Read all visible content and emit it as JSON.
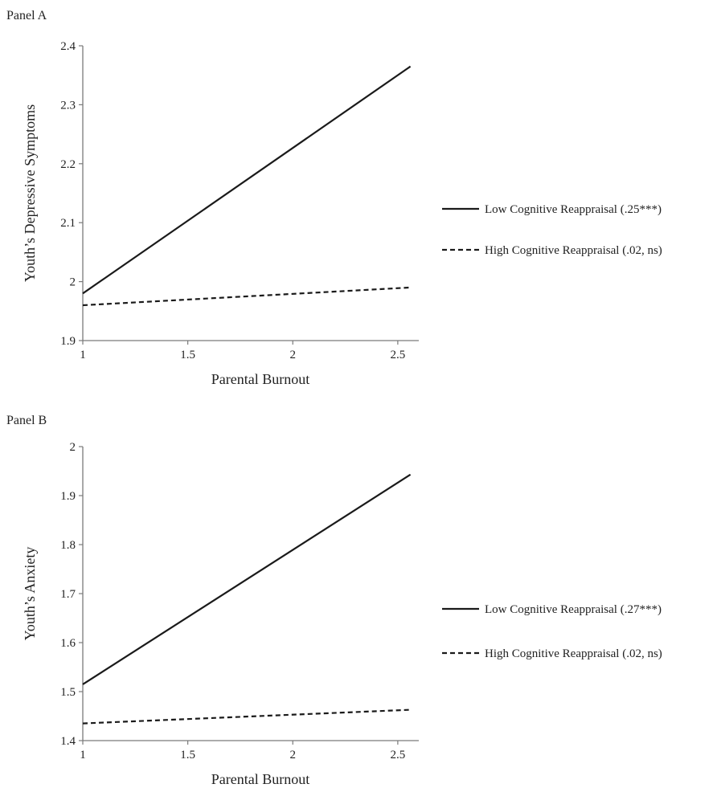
{
  "figure": {
    "panels": [
      {
        "label": "Panel A"
      },
      {
        "label": "Panel B"
      }
    ]
  },
  "chart_data": [
    {
      "type": "line",
      "panel": "Panel A",
      "xlabel": "Parental Burnout",
      "ylabel": "Youth’s Depressive Symptoms",
      "xlim": [
        1,
        2.6
      ],
      "ylim": [
        1.9,
        2.4
      ],
      "xticks": [
        "1",
        "1.5",
        "2",
        "2.5"
      ],
      "xtick_values": [
        1,
        1.5,
        2,
        2.5
      ],
      "yticks": [
        "1.9",
        "2",
        "2.1",
        "2.2",
        "2.3",
        "2.4"
      ],
      "ytick_values": [
        1.9,
        2.0,
        2.1,
        2.2,
        2.3,
        2.4
      ],
      "grid": false,
      "legend_position": "right",
      "series": [
        {
          "name": "Low Cognitive Reappraisal (.25***)",
          "line_style": "solid",
          "color": "#1a1a1a",
          "x": [
            1,
            2.56
          ],
          "y": [
            1.98,
            2.365
          ]
        },
        {
          "name": "High Cognitive Reappraisal (.02, ns)",
          "line_style": "dashed",
          "color": "#1a1a1a",
          "x": [
            1,
            2.56
          ],
          "y": [
            1.96,
            1.99
          ]
        }
      ]
    },
    {
      "type": "line",
      "panel": "Panel B",
      "xlabel": "Parental Burnout",
      "ylabel": "Youth’s Anxiety",
      "xlim": [
        1,
        2.6
      ],
      "ylim": [
        1.4,
        2.0
      ],
      "xticks": [
        "1",
        "1.5",
        "2",
        "2.5"
      ],
      "xtick_values": [
        1,
        1.5,
        2,
        2.5
      ],
      "yticks": [
        "1.4",
        "1.5",
        "1.6",
        "1.7",
        "1.8",
        "1.9",
        "2"
      ],
      "ytick_values": [
        1.4,
        1.5,
        1.6,
        1.7,
        1.8,
        1.9,
        2.0
      ],
      "grid": false,
      "legend_position": "right",
      "series": [
        {
          "name": "Low Cognitive Reappraisal (.27***)",
          "line_style": "solid",
          "color": "#1a1a1a",
          "x": [
            1,
            2.56
          ],
          "y": [
            1.515,
            1.943
          ]
        },
        {
          "name": "High Cognitive Reappraisal (.02, ns)",
          "line_style": "dashed",
          "color": "#1a1a1a",
          "x": [
            1,
            2.56
          ],
          "y": [
            1.435,
            1.463
          ]
        }
      ]
    }
  ]
}
